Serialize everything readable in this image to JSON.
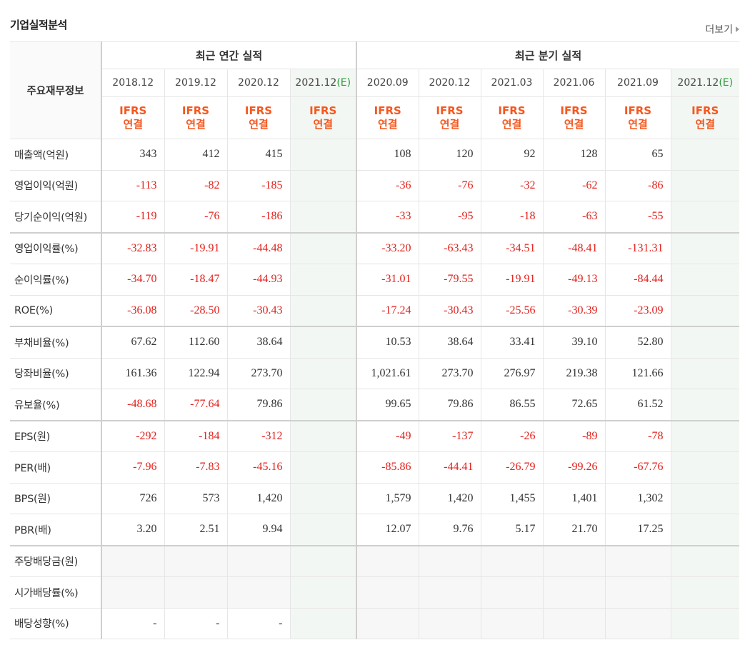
{
  "section": {
    "title": "기업실적분석",
    "more_label": "더보기"
  },
  "table": {
    "row_header_label": "주요재무정보",
    "groups": [
      "최근 연간 실적",
      "최근 분기 실적"
    ],
    "periods": [
      {
        "label": "2018.12",
        "est": ""
      },
      {
        "label": "2019.12",
        "est": ""
      },
      {
        "label": "2020.12",
        "est": ""
      },
      {
        "label": "2021.12",
        "est": "(E)"
      },
      {
        "label": "2020.09",
        "est": ""
      },
      {
        "label": "2020.12",
        "est": ""
      },
      {
        "label": "2021.03",
        "est": ""
      },
      {
        "label": "2021.06",
        "est": ""
      },
      {
        "label": "2021.09",
        "est": ""
      },
      {
        "label": "2021.12",
        "est": "(E)"
      }
    ],
    "type_top": "IFRS",
    "type_bottom": "연결",
    "rows": [
      {
        "label": "매출액(억원)",
        "values": [
          "343",
          "412",
          "415",
          "",
          "108",
          "120",
          "92",
          "128",
          "65",
          ""
        ]
      },
      {
        "label": "영업이익(억원)",
        "values": [
          "-113",
          "-82",
          "-185",
          "",
          "-36",
          "-76",
          "-32",
          "-62",
          "-86",
          ""
        ]
      },
      {
        "label": "당기순이익(억원)",
        "values": [
          "-119",
          "-76",
          "-186",
          "",
          "-33",
          "-95",
          "-18",
          "-63",
          "-55",
          ""
        ]
      },
      {
        "label": "영업이익률(%)",
        "values": [
          "-32.83",
          "-19.91",
          "-44.48",
          "",
          "-33.20",
          "-63.43",
          "-34.51",
          "-48.41",
          "-131.31",
          ""
        ]
      },
      {
        "label": "순이익률(%)",
        "values": [
          "-34.70",
          "-18.47",
          "-44.93",
          "",
          "-31.01",
          "-79.55",
          "-19.91",
          "-49.13",
          "-84.44",
          ""
        ]
      },
      {
        "label": "ROE(%)",
        "values": [
          "-36.08",
          "-28.50",
          "-30.43",
          "",
          "-17.24",
          "-30.43",
          "-25.56",
          "-30.39",
          "-23.09",
          ""
        ]
      },
      {
        "label": "부채비율(%)",
        "values": [
          "67.62",
          "112.60",
          "38.64",
          "",
          "10.53",
          "38.64",
          "33.41",
          "39.10",
          "52.80",
          ""
        ]
      },
      {
        "label": "당좌비율(%)",
        "values": [
          "161.36",
          "122.94",
          "273.70",
          "",
          "1,021.61",
          "273.70",
          "276.97",
          "219.38",
          "121.66",
          ""
        ]
      },
      {
        "label": "유보율(%)",
        "values": [
          "-48.68",
          "-77.64",
          "79.86",
          "",
          "99.65",
          "79.86",
          "86.55",
          "72.65",
          "61.52",
          ""
        ]
      },
      {
        "label": "EPS(원)",
        "values": [
          "-292",
          "-184",
          "-312",
          "",
          "-49",
          "-137",
          "-26",
          "-89",
          "-78",
          ""
        ]
      },
      {
        "label": "PER(배)",
        "values": [
          "-7.96",
          "-7.83",
          "-45.16",
          "",
          "-85.86",
          "-44.41",
          "-26.79",
          "-99.26",
          "-67.76",
          ""
        ]
      },
      {
        "label": "BPS(원)",
        "values": [
          "726",
          "573",
          "1,420",
          "",
          "1,579",
          "1,420",
          "1,455",
          "1,401",
          "1,302",
          ""
        ]
      },
      {
        "label": "PBR(배)",
        "values": [
          "3.20",
          "2.51",
          "9.94",
          "",
          "12.07",
          "9.76",
          "5.17",
          "21.70",
          "17.25",
          ""
        ]
      },
      {
        "label": "주당배당금(원)",
        "values": [
          "",
          "",
          "",
          "",
          "",
          "",
          "",
          "",
          "",
          ""
        ]
      },
      {
        "label": "시가배당률(%)",
        "values": [
          "",
          "",
          "",
          "",
          "",
          "",
          "",
          "",
          "",
          ""
        ]
      },
      {
        "label": "배당성향(%)",
        "values": [
          "-",
          "-",
          "-",
          "",
          "",
          "",
          "",
          "",
          "",
          ""
        ]
      }
    ]
  },
  "colors": {
    "negative": "#e2211c",
    "ifrs": "#f5571e",
    "estimate": "#2f9a3b"
  }
}
